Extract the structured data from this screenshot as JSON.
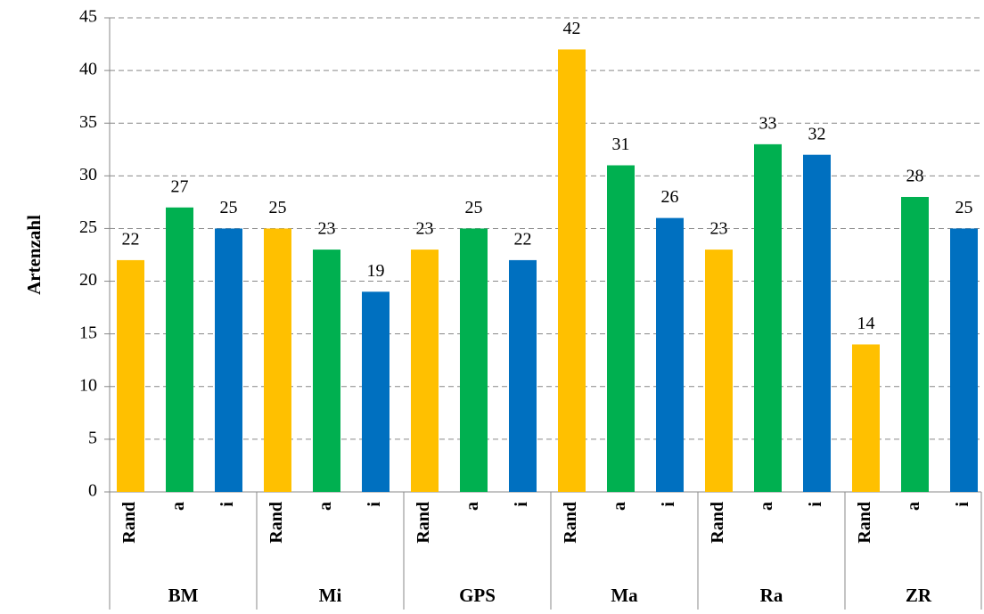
{
  "chart_data": {
    "type": "bar",
    "ylabel": "Artenzahl",
    "categories": [
      "BM",
      "Mi",
      "GPS",
      "Ma",
      "Ra",
      "ZR"
    ],
    "series": [
      {
        "name": "Rand",
        "color": "#ffc000",
        "values": [
          22,
          25,
          23,
          42,
          23,
          14
        ]
      },
      {
        "name": "a",
        "color": "#00b050",
        "values": [
          27,
          23,
          25,
          31,
          33,
          28
        ]
      },
      {
        "name": "i",
        "color": "#0070c0",
        "values": [
          25,
          19,
          22,
          26,
          32,
          25
        ]
      }
    ],
    "ylim": [
      0,
      45
    ],
    "yticks": [
      0,
      5,
      10,
      15,
      20,
      25,
      30,
      35,
      40,
      45
    ],
    "grid": true
  }
}
